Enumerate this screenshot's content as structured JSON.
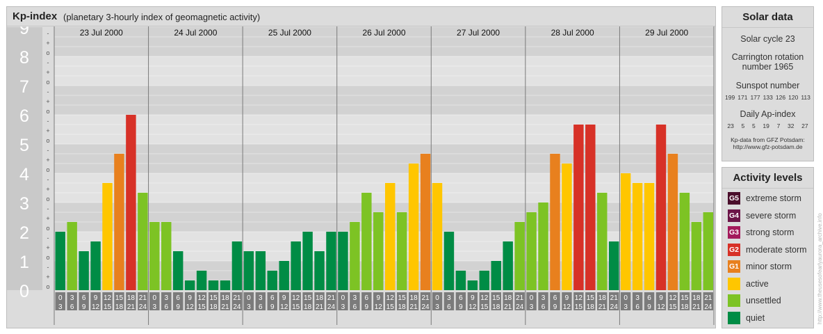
{
  "header": {
    "title": "Kp-index",
    "subtitle": "(planetary 3-hourly index of geomagnetic activity)"
  },
  "chart_data": {
    "type": "bar",
    "title": "Kp-index",
    "subtitle": "(planetary 3-hourly index of geomagnetic activity)",
    "ylim": [
      0,
      9
    ],
    "y_ticks": [
      "0",
      "1",
      "2",
      "3",
      "4",
      "5",
      "6",
      "7",
      "8",
      "9"
    ],
    "y_minor_ticks": [
      "o",
      "+",
      "-"
    ],
    "days": [
      "23 Jul 2000",
      "24 Jul 2000",
      "25 Jul 2000",
      "26 Jul 2000",
      "27 Jul 2000",
      "28 Jul 2000",
      "29 Jul 2000"
    ],
    "hour_labels": [
      [
        "0",
        "3"
      ],
      [
        "3",
        "6"
      ],
      [
        "6",
        "9"
      ],
      [
        "9",
        "12"
      ],
      [
        "12",
        "15"
      ],
      [
        "15",
        "18"
      ],
      [
        "18",
        "21"
      ],
      [
        "21",
        "24"
      ]
    ],
    "values": [
      [
        2.0,
        2.333,
        1.333,
        1.667,
        3.667,
        4.667,
        6.0,
        3.333
      ],
      [
        2.333,
        2.333,
        1.333,
        0.333,
        0.667,
        0.333,
        0.333,
        1.667
      ],
      [
        1.333,
        1.333,
        0.667,
        1.0,
        1.667,
        2.0,
        1.333,
        2.0
      ],
      [
        2.0,
        2.333,
        3.333,
        2.667,
        3.667,
        2.667,
        4.333,
        4.667
      ],
      [
        3.667,
        2.0,
        0.667,
        0.333,
        0.667,
        1.0,
        1.667,
        2.333
      ],
      [
        2.667,
        3.0,
        4.667,
        4.333,
        5.667,
        5.667,
        3.333,
        1.667
      ],
      [
        4.0,
        3.667,
        3.667,
        5.667,
        4.667,
        3.333,
        2.333,
        2.667
      ]
    ],
    "levels": [
      {
        "color": "#008c45",
        "max": 2.0
      },
      {
        "color": "#7dc324",
        "max": 3.5
      },
      {
        "color": "#ffc600",
        "max": 4.5
      },
      {
        "color": "#e8801e",
        "max": 5.5
      },
      {
        "color": "#d73127",
        "max": 6.5
      },
      {
        "color": "#a3195b",
        "max": 7.5
      },
      {
        "color": "#6c1548",
        "max": 8.5
      },
      {
        "color": "#4a0e2b",
        "max": 9.0
      }
    ]
  },
  "solar": {
    "heading": "Solar data",
    "cycle": "Solar cycle 23",
    "carrington_line1": "Carrington rotation",
    "carrington_line2": "number 1965",
    "sunspot_title": "Sunspot number",
    "sunspots": [
      "199",
      "171",
      "177",
      "133",
      "126",
      "120",
      "113"
    ],
    "ap_title": "Daily Ap-index",
    "ap_values": [
      "23",
      "5",
      "5",
      "19",
      "7",
      "32",
      "27"
    ],
    "credit_line1": "Kp-data from GFZ Potsdam:",
    "credit_line2": "http://www.gfz-potsdam.de"
  },
  "levels_panel": {
    "heading": "Activity levels",
    "items": [
      {
        "code": "G5",
        "label": "extreme storm",
        "color": "#4a0e2b"
      },
      {
        "code": "G4",
        "label": "severe storm",
        "color": "#6c1548"
      },
      {
        "code": "G3",
        "label": "strong storm",
        "color": "#a3195b"
      },
      {
        "code": "G2",
        "label": "moderate storm",
        "color": "#d73127"
      },
      {
        "code": "G1",
        "label": "minor storm",
        "color": "#e8801e"
      },
      {
        "code": "",
        "label": "active",
        "color": "#ffc600"
      },
      {
        "code": "",
        "label": "unsettled",
        "color": "#7dc324"
      },
      {
        "code": "",
        "label": "quiet",
        "color": "#008c45"
      }
    ]
  },
  "watermark": "http://www.theusesofearlyaurora_archive.info"
}
